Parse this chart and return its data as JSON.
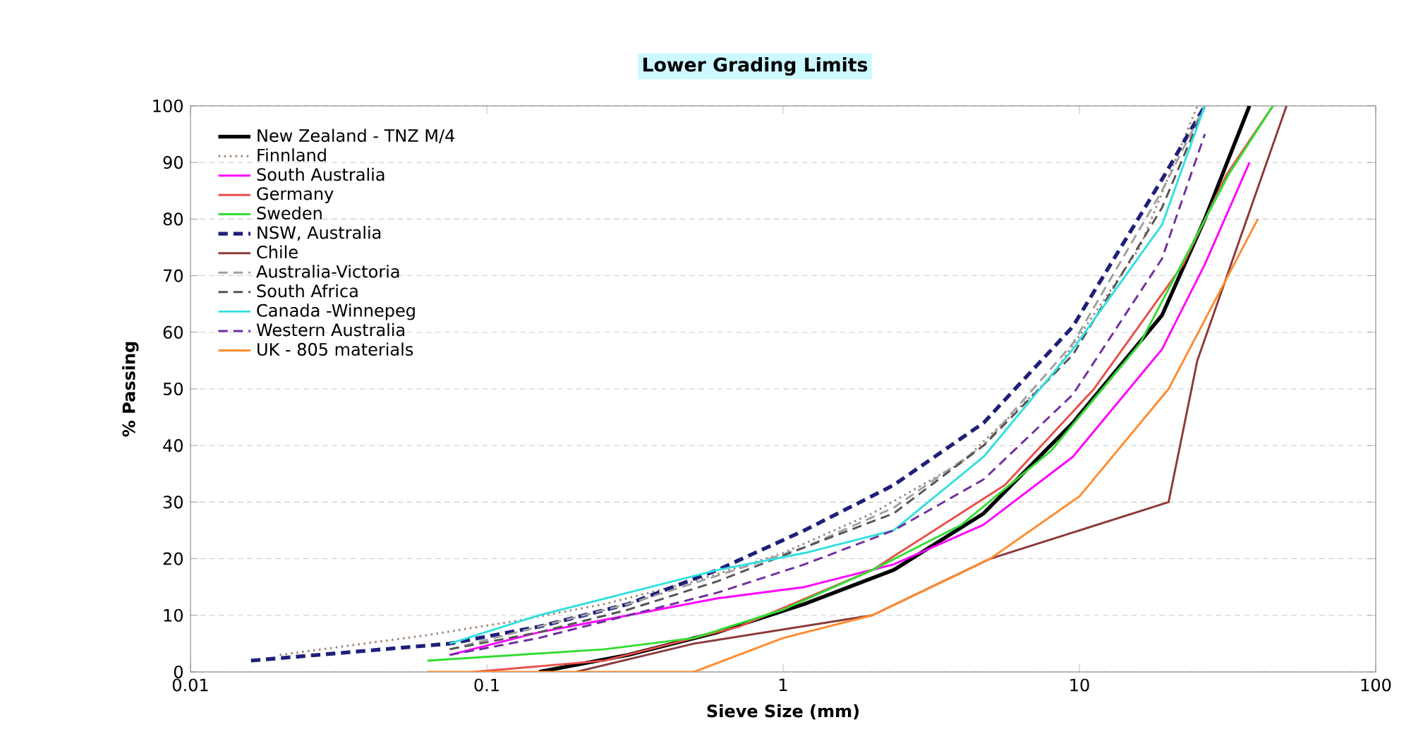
{
  "chart_data": {
    "type": "line",
    "title": "Lower Grading Limits",
    "xlabel": "Sieve Size (mm)",
    "ylabel": "% Passing",
    "log": "x",
    "xlim": [
      0.01,
      100
    ],
    "xticks": [
      0.01,
      0.1,
      1,
      10,
      100
    ],
    "ylim": [
      0,
      100
    ],
    "yticks": [
      0,
      10,
      20,
      30,
      40,
      50,
      60,
      70,
      80,
      90,
      100
    ],
    "grid": "y",
    "legend": "top left",
    "line_style": "solid",
    "marker": "none",
    "series": [
      {
        "name": "New Zealand - TNZ M/4",
        "color": "#000000",
        "x": [
          0.15,
          0.3,
          0.6,
          1.18,
          2.36,
          4.75,
          9.5,
          19,
          26.5,
          37.5
        ],
        "values": [
          0,
          3,
          7,
          12,
          18,
          28,
          44,
          63,
          80,
          100
        ]
      },
      {
        "name": "Finnland",
        "color": "#a08878",
        "line_style": "dotted",
        "x": [
          0.02,
          0.063,
          0.125,
          0.25,
          0.5,
          1,
          2,
          4,
          8,
          16,
          25
        ],
        "values": [
          3,
          6.5,
          9,
          12,
          16,
          21,
          28,
          37,
          52,
          75,
          100
        ]
      },
      {
        "name": "South Australia",
        "color": "#ff00ff",
        "x": [
          0.075,
          0.15,
          0.3,
          0.6,
          1.18,
          2.36,
          4.75,
          9.5,
          19,
          26.5,
          37.5
        ],
        "values": [
          3,
          7,
          10,
          13,
          15,
          19,
          26,
          38,
          57,
          72,
          90
        ]
      },
      {
        "name": "Germany",
        "color": "#e8504a",
        "x": [
          0.09,
          0.25,
          0.71,
          2,
          5.6,
          11.2,
          22.4,
          31.5,
          45
        ],
        "values": [
          0,
          2,
          8,
          18,
          33,
          50,
          72,
          88,
          100
        ]
      },
      {
        "name": "Sweden",
        "color": "#33dd33",
        "x": [
          0.063,
          0.125,
          0.25,
          0.5,
          1,
          2,
          4,
          8,
          16,
          32,
          45
        ],
        "values": [
          2,
          3,
          4,
          6,
          11,
          18,
          26,
          39,
          58,
          88,
          100
        ]
      },
      {
        "name": "NSW, Australia",
        "color": "#1f1f7a",
        "line_style": "dashed",
        "x": [
          0.016,
          0.075,
          0.15,
          0.3,
          0.6,
          1.18,
          2.36,
          4.75,
          9.5,
          19,
          26.5
        ],
        "values": [
          2,
          5,
          8,
          12,
          18,
          25,
          33,
          44,
          61,
          87,
          100
        ]
      },
      {
        "name": "Chile",
        "color": "#8b3a3a",
        "x": [
          0.2,
          0.5,
          2,
          5,
          20,
          25,
          50
        ],
        "values": [
          0,
          5,
          10,
          20,
          30,
          55,
          100
        ]
      },
      {
        "name": "Australia-Victoria",
        "color": "#a0a0a0",
        "line_style": "dashed",
        "x": [
          0.075,
          0.15,
          0.3,
          0.6,
          1.18,
          2.36,
          4.75,
          9.5,
          19,
          26.5
        ],
        "values": [
          4,
          8,
          12,
          17,
          22,
          29,
          40,
          58,
          85,
          100
        ]
      },
      {
        "name": "South Africa",
        "color": "#555555",
        "line_style": "dashed",
        "x": [
          0.075,
          0.15,
          0.3,
          0.6,
          1.18,
          2.36,
          4.75,
          9.5,
          19,
          26.5
        ],
        "values": [
          4,
          7,
          11,
          16,
          22,
          28,
          40,
          56,
          82,
          100
        ]
      },
      {
        "name": "Canada -Winnepeg",
        "color": "#33e0e0",
        "x": [
          0.075,
          0.15,
          0.3,
          0.6,
          1.18,
          2.36,
          4.75,
          9.5,
          19,
          26.5
        ],
        "values": [
          5,
          10,
          14,
          18,
          21,
          25,
          38,
          57,
          79,
          100
        ]
      },
      {
        "name": "Western Australia",
        "color": "#7030a0",
        "line_style": "dashed",
        "x": [
          0.075,
          0.15,
          0.3,
          0.6,
          1.18,
          2.36,
          4.75,
          9.5,
          19,
          26.5
        ],
        "values": [
          3,
          6,
          10,
          14,
          19,
          25,
          34,
          49,
          73,
          95
        ]
      },
      {
        "name": "UK - 805 materials",
        "color": "#ff8c30",
        "x": [
          0.063,
          0.5,
          1,
          2,
          5,
          10,
          20,
          40
        ],
        "values": [
          0,
          0,
          6,
          10,
          20,
          31,
          50,
          80
        ]
      }
    ]
  }
}
